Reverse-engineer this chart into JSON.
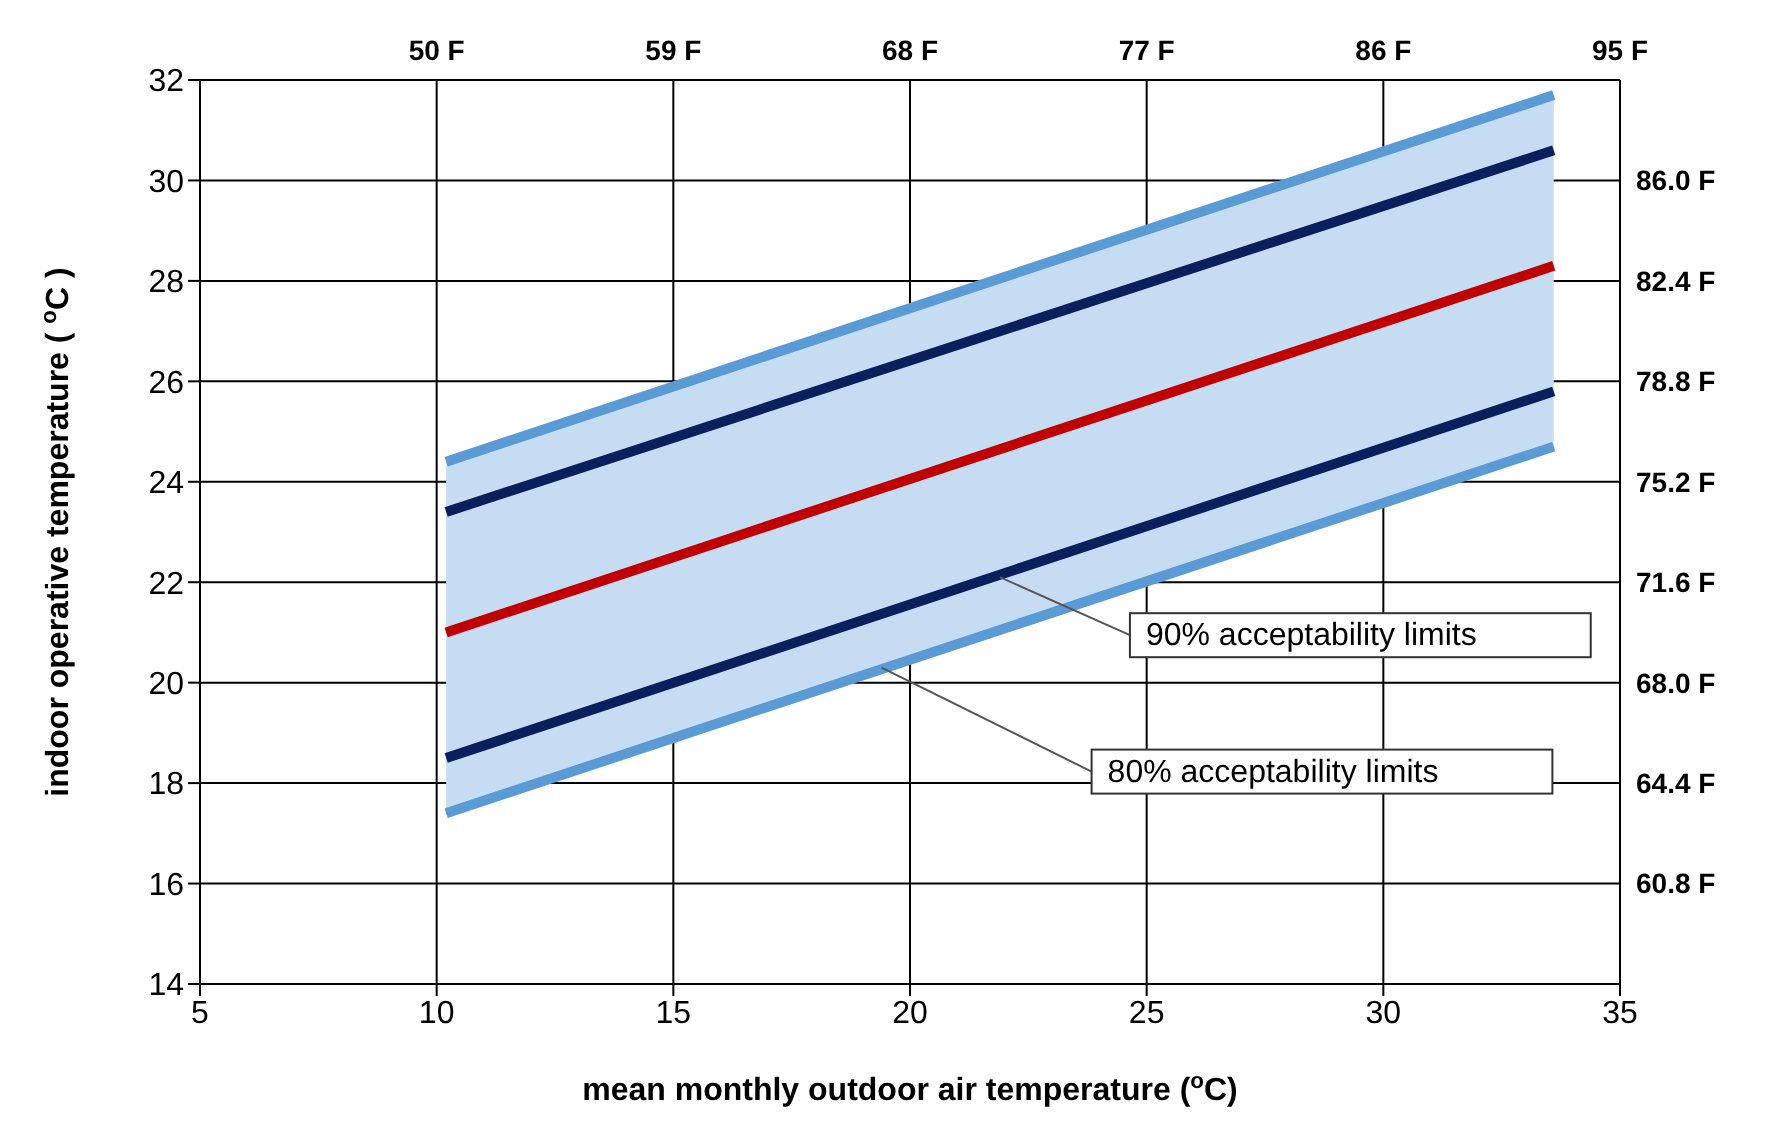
{
  "chart_data": {
    "type": "line",
    "xlabel": "mean monthly outdoor air temperature ($^{o}$C)",
    "ylabel": "indoor operative temperature ( $^{o}$C )",
    "x": [
      10.2,
      33.6
    ],
    "series": [
      {
        "color": "#5b9bd5",
        "values": [
          24.4,
          31.7
        ]
      },
      {
        "color": "#0b1f5c",
        "values": [
          23.4,
          30.6
        ]
      },
      {
        "color": "#c00000",
        "values": [
          21.0,
          28.3
        ],
        "lower": [
          17.4,
          24.7
        ],
        "upper": [
          24.4,
          31.7
        ]
      },
      {
        "color": "#0b1f5c",
        "values": [
          18.5,
          25.8
        ]
      },
      {
        "color": "#5b9bd5",
        "values": [
          17.4,
          24.7
        ]
      }
    ],
    "xlim": [
      5,
      35
    ],
    "xticks": [
      5,
      10,
      15,
      20,
      25,
      30,
      35
    ],
    "ylim": [
      14,
      32
    ],
    "yticks": [
      14,
      16,
      18,
      20,
      22,
      24,
      26,
      28,
      30,
      32
    ],
    "x2lim": [
      41,
      95
    ],
    "x2ticks": [
      {
        "value": 50,
        "label": "50 F"
      },
      {
        "value": 59,
        "label": "59 F"
      },
      {
        "value": 68,
        "label": "68 F"
      },
      {
        "value": 77,
        "label": "77 F"
      },
      {
        "value": 86,
        "label": "86 F"
      },
      {
        "value": 95,
        "label": "95 F"
      }
    ],
    "y2lim": [
      57.2,
      89.6
    ],
    "y2ticks": [
      {
        "value": 60.8,
        "label": "60.8 F"
      },
      {
        "value": 64.4,
        "label": "64.4 F"
      },
      {
        "value": 68,
        "label": "68.0 F"
      },
      {
        "value": 71.6,
        "label": "71.6 F"
      },
      {
        "value": 75.2,
        "label": "75.2 F"
      },
      {
        "value": 78.8,
        "label": "78.8 F"
      },
      {
        "value": 82.4,
        "label": "82.4 F"
      },
      {
        "value": 86,
        "label": "86.0 F"
      }
    ],
    "annotations": [
      {
        "text": "90% acceptability limits",
        "x": 21.9,
        "y": 22.1
      },
      {
        "text": "80% acceptability limits",
        "x": 19.4,
        "y": 20.3
      }
    ],
    "grid": true,
    "marker": "none",
    "line_style": "solid"
  }
}
